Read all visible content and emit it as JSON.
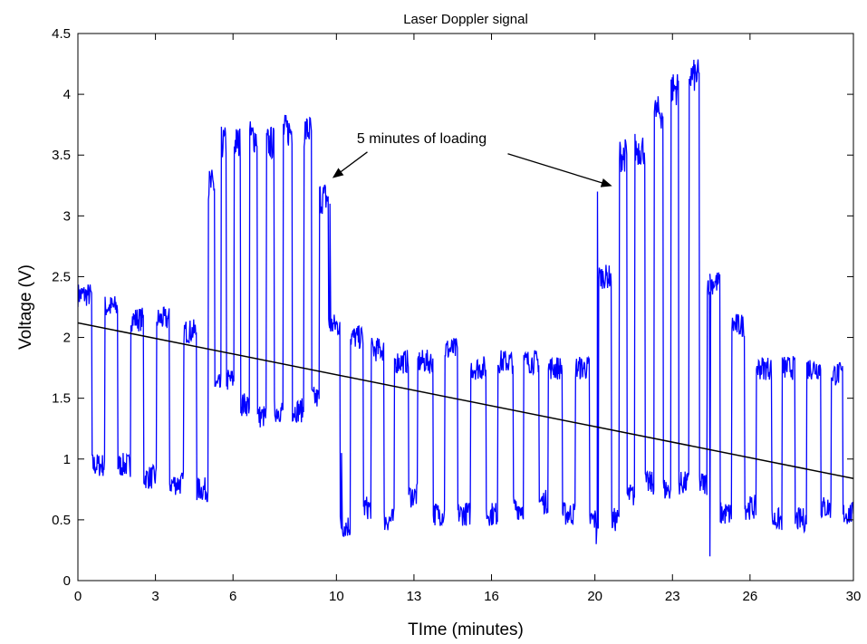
{
  "chart_data": {
    "type": "line",
    "title": "Laser Doppler signal",
    "xlabel": "TIme (minutes)",
    "ylabel": "Voltage (V)",
    "xlim": [
      0,
      30
    ],
    "ylim": [
      0,
      4.5
    ],
    "x_ticks": [
      "0",
      "3",
      "6",
      "10",
      "13",
      "16",
      "20",
      "23",
      "26",
      "30"
    ],
    "y_ticks": [
      "0",
      "0.5",
      "1",
      "1.5",
      "2",
      "2.5",
      "3",
      "3.5",
      "4",
      "4.5"
    ],
    "grid": false,
    "colors": {
      "signal": "#0000ff",
      "trend": "#000000",
      "axes": "#000000"
    },
    "series": [
      {
        "type": "step-levels",
        "color": "#0000ff",
        "levels": [
          [
            0.0,
            2.35
          ],
          [
            0.55,
            0.95
          ],
          [
            1.05,
            2.25
          ],
          [
            1.55,
            0.95
          ],
          [
            2.05,
            2.15
          ],
          [
            2.55,
            0.85
          ],
          [
            3.05,
            2.15
          ],
          [
            3.55,
            0.8
          ],
          [
            4.1,
            2.05
          ],
          [
            4.6,
            0.75
          ],
          [
            5.05,
            3.25
          ],
          [
            5.3,
            1.6
          ],
          [
            5.55,
            3.6
          ],
          [
            5.75,
            1.65
          ],
          [
            6.05,
            3.6
          ],
          [
            6.3,
            1.45
          ],
          [
            6.65,
            3.65
          ],
          [
            6.95,
            1.35
          ],
          [
            7.3,
            3.6
          ],
          [
            7.6,
            1.4
          ],
          [
            7.95,
            3.7
          ],
          [
            8.3,
            1.4
          ],
          [
            8.75,
            3.7
          ],
          [
            9.05,
            1.5
          ],
          [
            9.35,
            3.15
          ],
          [
            9.7,
            2.1
          ],
          [
            10.15,
            0.45
          ],
          [
            10.55,
            2.0
          ],
          [
            11.05,
            0.6
          ],
          [
            11.35,
            1.9
          ],
          [
            11.85,
            0.5
          ],
          [
            12.25,
            1.8
          ],
          [
            12.8,
            0.7
          ],
          [
            13.15,
            1.8
          ],
          [
            13.75,
            0.55
          ],
          [
            14.2,
            1.9
          ],
          [
            14.7,
            0.55
          ],
          [
            15.2,
            1.75
          ],
          [
            15.8,
            0.55
          ],
          [
            16.25,
            1.8
          ],
          [
            16.85,
            0.6
          ],
          [
            17.25,
            1.8
          ],
          [
            17.85,
            0.65
          ],
          [
            18.2,
            1.75
          ],
          [
            18.75,
            0.55
          ],
          [
            19.25,
            1.75
          ],
          [
            19.8,
            0.5
          ],
          [
            20.15,
            2.5
          ],
          [
            20.65,
            0.5
          ],
          [
            20.95,
            3.5
          ],
          [
            21.25,
            0.7
          ],
          [
            21.55,
            3.55
          ],
          [
            21.95,
            0.8
          ],
          [
            22.3,
            3.85
          ],
          [
            22.65,
            0.75
          ],
          [
            22.95,
            4.05
          ],
          [
            23.25,
            0.8
          ],
          [
            23.65,
            4.15
          ],
          [
            24.05,
            0.8
          ],
          [
            24.35,
            2.45
          ],
          [
            24.85,
            0.55
          ],
          [
            25.3,
            2.1
          ],
          [
            25.8,
            0.6
          ],
          [
            26.25,
            1.75
          ],
          [
            26.85,
            0.5
          ],
          [
            27.25,
            1.75
          ],
          [
            27.75,
            0.5
          ],
          [
            28.2,
            1.75
          ],
          [
            28.75,
            0.6
          ],
          [
            29.15,
            1.7
          ],
          [
            29.6,
            0.55
          ],
          [
            30.0,
            0.55
          ]
        ],
        "spikes": [
          [
            9.75,
            3.1
          ],
          [
            20.05,
            0.3
          ],
          [
            20.1,
            3.2
          ],
          [
            24.45,
            0.2
          ],
          [
            10.2,
            1.05
          ]
        ]
      },
      {
        "type": "linear-trend",
        "color": "#000000",
        "points": [
          [
            0,
            2.12
          ],
          [
            30,
            0.84
          ]
        ]
      }
    ],
    "annotations": [
      {
        "text": "5 minutes of loading",
        "text_at": [
          13.3,
          3.6
        ],
        "arrows": [
          [
            9.9,
            3.32
          ],
          [
            20.6,
            3.25
          ]
        ]
      }
    ]
  }
}
